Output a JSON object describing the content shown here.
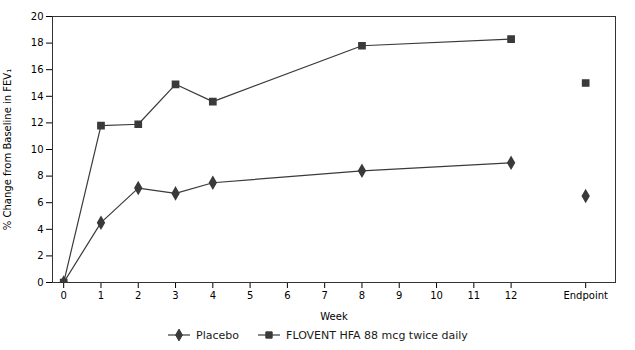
{
  "chart_data": {
    "type": "line",
    "x": [
      0,
      1,
      2,
      3,
      4,
      8,
      12
    ],
    "endpoint_x": 14,
    "series": [
      {
        "name": "Placebo",
        "color": "#3a3a3a",
        "marker": "diamond",
        "values": [
          0,
          4.5,
          7.1,
          6.7,
          7.5,
          8.4,
          9.0
        ],
        "endpoint": 6.5
      },
      {
        "name": "FLOVENT HFA 88 mcg twice daily",
        "color": "#3a3a3a",
        "marker": "square",
        "values": [
          0,
          11.8,
          11.9,
          14.9,
          13.6,
          17.8,
          18.3
        ],
        "endpoint": 15.0
      }
    ],
    "xlabel": "Week",
    "ylabel": "% Change from Baseline in FEV₁",
    "xlim": [
      -0.3,
      14.8
    ],
    "xticks": [
      0,
      1,
      2,
      3,
      4,
      5,
      6,
      7,
      8,
      9,
      10,
      11,
      12,
      {
        "value": 14,
        "label": "Endpoint"
      }
    ],
    "ylim": [
      0,
      20
    ],
    "yticks": [
      0,
      2,
      4,
      6,
      8,
      10,
      12,
      14,
      16,
      18,
      20
    ],
    "grid": false
  }
}
